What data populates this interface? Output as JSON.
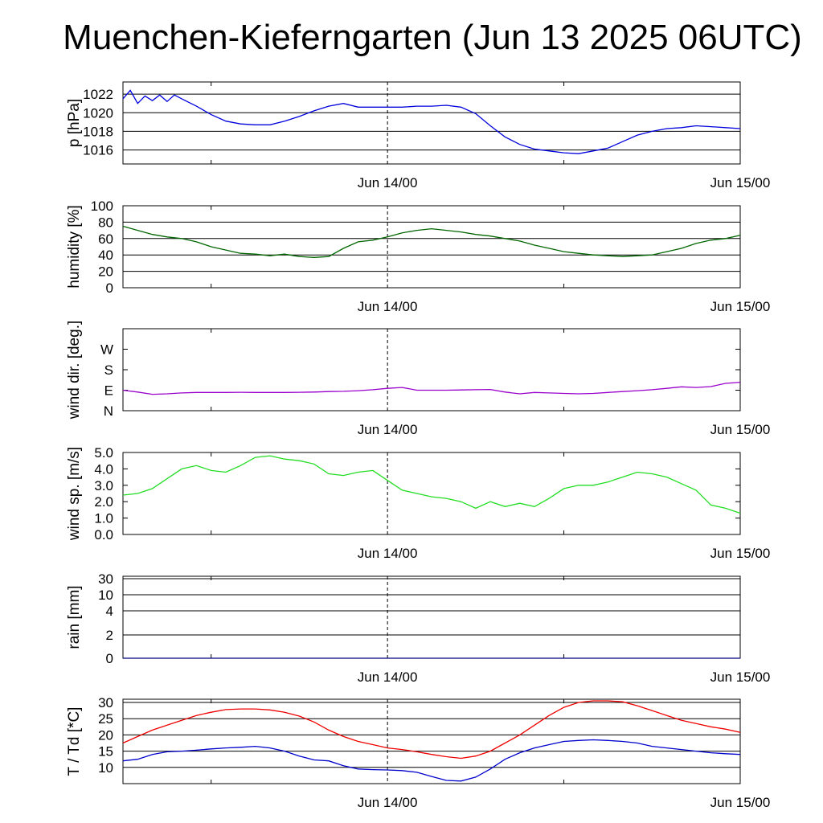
{
  "title": "Muenchen-Kieferngarten (Jun 13 2025 06UTC)",
  "chart_data": [
    {
      "type": "line",
      "ylabel": "p [hPa]",
      "ylim": [
        1014.5,
        1023.3
      ],
      "yticks": [
        1016,
        1018,
        1020,
        1022
      ],
      "yticklabels": [
        "1016",
        "1018",
        "1020",
        "1022"
      ],
      "grid": true,
      "xticklabels": [
        "Jun 14/00",
        "Jun 15/00"
      ],
      "series": [
        {
          "color": "#0000dd",
          "x": [
            0,
            0.5,
            1,
            1.5,
            2,
            2.5,
            3,
            3.5,
            4,
            5,
            6,
            7,
            8,
            9,
            10,
            11,
            12,
            13,
            14,
            15,
            16,
            17,
            18,
            19,
            20,
            21,
            22,
            23,
            24,
            25,
            26,
            27,
            28,
            29,
            30,
            31,
            32,
            33,
            34,
            35,
            36,
            37,
            38,
            39,
            40,
            41,
            42
          ],
          "y": [
            1021.5,
            1022.4,
            1021.0,
            1021.8,
            1021.3,
            1021.9,
            1021.2,
            1021.9,
            1021.5,
            1020.7,
            1019.8,
            1019.1,
            1018.8,
            1018.7,
            1018.7,
            1019.1,
            1019.6,
            1020.2,
            1020.7,
            1021.0,
            1020.6,
            1020.6,
            1020.6,
            1020.6,
            1020.7,
            1020.7,
            1020.8,
            1020.6,
            1019.9,
            1018.6,
            1017.4,
            1016.6,
            1016.1,
            1015.9,
            1015.7,
            1015.6,
            1015.9,
            1016.2,
            1016.9,
            1017.6,
            1018.0,
            1018.3,
            1018.4,
            1018.6,
            1018.5,
            1018.4,
            1018.3
          ]
        }
      ]
    },
    {
      "type": "line",
      "ylabel": "humidity [%]",
      "ylim": [
        0,
        100
      ],
      "yticks": [
        0,
        20,
        40,
        60,
        80,
        100
      ],
      "yticklabels": [
        "0",
        "20",
        "40",
        "60",
        "80",
        "100"
      ],
      "grid": true,
      "xticklabels": [
        "Jun 14/00",
        "Jun 15/00"
      ],
      "series": [
        {
          "color": "#006600",
          "x": [
            0,
            1,
            2,
            3,
            4,
            5,
            6,
            7,
            8,
            9,
            10,
            11,
            12,
            13,
            14,
            15,
            16,
            17,
            18,
            19,
            20,
            21,
            22,
            23,
            24,
            25,
            26,
            27,
            28,
            29,
            30,
            31,
            32,
            33,
            34,
            35,
            36,
            37,
            38,
            39,
            40,
            41,
            42
          ],
          "y": [
            75,
            70,
            65,
            62,
            60,
            56,
            50,
            46,
            42,
            41,
            39,
            41,
            38,
            37,
            38,
            48,
            56,
            58,
            62,
            67,
            70,
            72,
            70,
            68,
            65,
            63,
            60,
            57,
            52,
            48,
            44,
            42,
            40,
            39,
            38,
            39,
            40,
            44,
            48,
            54,
            58,
            60,
            64
          ]
        }
      ]
    },
    {
      "type": "line",
      "ylabel": "wind dir. [deg.]",
      "ylim": [
        0,
        360
      ],
      "yticks": [
        0,
        90,
        180,
        270
      ],
      "yticklabels": [
        "N",
        "E",
        "S",
        "W"
      ],
      "grid": false,
      "xticklabels": [
        "Jun 14/00",
        "Jun 15/00"
      ],
      "series": [
        {
          "color": "#9900cc",
          "x": [
            0,
            1,
            2,
            3,
            4,
            5,
            6,
            7,
            8,
            9,
            10,
            11,
            12,
            13,
            14,
            15,
            16,
            17,
            18,
            19,
            20,
            21,
            22,
            23,
            24,
            25,
            26,
            27,
            28,
            29,
            30,
            31,
            32,
            33,
            34,
            35,
            36,
            37,
            38,
            39,
            40,
            41,
            42
          ],
          "y": [
            90,
            82,
            72,
            74,
            78,
            80,
            80,
            80,
            81,
            80,
            80,
            80,
            81,
            82,
            84,
            85,
            88,
            92,
            98,
            102,
            90,
            90,
            90,
            91,
            92,
            93,
            82,
            74,
            80,
            78,
            76,
            74,
            76,
            80,
            84,
            88,
            92,
            98,
            105,
            102,
            106,
            120,
            125
          ]
        }
      ]
    },
    {
      "type": "line",
      "ylabel": "wind sp. [m/s]",
      "ylim": [
        0,
        5.0
      ],
      "yticks": [
        0,
        1,
        2,
        3,
        4,
        5
      ],
      "yticklabels": [
        "0.0",
        "1.0",
        "2.0",
        "3.0",
        "4.0",
        "5.0"
      ],
      "grid": false,
      "xticklabels": [
        "Jun 14/00",
        "Jun 15/00"
      ],
      "series": [
        {
          "color": "#22dd22",
          "x": [
            0,
            1,
            2,
            3,
            4,
            5,
            6,
            7,
            8,
            9,
            10,
            11,
            12,
            13,
            14,
            15,
            16,
            17,
            18,
            19,
            20,
            21,
            22,
            23,
            24,
            25,
            26,
            27,
            28,
            29,
            30,
            31,
            32,
            33,
            34,
            35,
            36,
            37,
            38,
            39,
            40,
            41,
            42
          ],
          "y": [
            2.4,
            2.5,
            2.8,
            3.4,
            4.0,
            4.2,
            3.9,
            3.8,
            4.2,
            4.7,
            4.8,
            4.6,
            4.5,
            4.3,
            3.7,
            3.6,
            3.8,
            3.9,
            3.3,
            2.7,
            2.5,
            2.3,
            2.2,
            2.0,
            1.6,
            2.0,
            1.7,
            1.9,
            1.7,
            2.2,
            2.8,
            3.0,
            3.0,
            3.2,
            3.5,
            3.8,
            3.7,
            3.5,
            3.1,
            2.7,
            1.8,
            1.6,
            1.3
          ]
        }
      ]
    },
    {
      "type": "line",
      "ylabel": "rain [mm]",
      "ylim": [
        0,
        30
      ],
      "yticks": [
        0,
        2,
        4,
        10,
        30
      ],
      "yticklabels": [
        "0",
        "2",
        "4",
        "10",
        "30"
      ],
      "grid": true,
      "xticklabels": [
        "Jun 14/00",
        "Jun 15/00"
      ],
      "series": [
        {
          "color": "#000080",
          "x": [
            0,
            42
          ],
          "y": [
            0,
            0
          ]
        }
      ]
    },
    {
      "type": "line",
      "ylabel": "T / Td [*C]",
      "ylim": [
        5,
        31
      ],
      "yticks": [
        10,
        15,
        20,
        25,
        30
      ],
      "yticklabels": [
        "10",
        "15",
        "20",
        "25",
        "30"
      ],
      "grid": true,
      "xticklabels": [
        "Jun 14/00",
        "Jun 15/00"
      ],
      "series": [
        {
          "color": "#ee0000",
          "x": [
            0,
            1,
            2,
            3,
            4,
            5,
            6,
            7,
            8,
            9,
            10,
            11,
            12,
            13,
            14,
            15,
            16,
            17,
            18,
            19,
            20,
            21,
            22,
            23,
            24,
            25,
            26,
            27,
            28,
            29,
            30,
            31,
            32,
            33,
            34,
            35,
            36,
            37,
            38,
            39,
            40,
            41,
            42
          ],
          "y": [
            17.5,
            19.5,
            21.5,
            23,
            24.5,
            26,
            27,
            27.8,
            28,
            28,
            27.7,
            27,
            25.8,
            24,
            21.5,
            19.5,
            18,
            17,
            16,
            15.5,
            14.8,
            14,
            13.3,
            12.8,
            13.5,
            15,
            17.5,
            20,
            23,
            26,
            28.5,
            30,
            30.5,
            30.5,
            30.2,
            29,
            27.5,
            26,
            24.5,
            23.5,
            22.5,
            21.8,
            20.8
          ]
        },
        {
          "color": "#0000cc",
          "x": [
            0,
            1,
            2,
            3,
            4,
            5,
            6,
            7,
            8,
            9,
            10,
            11,
            12,
            13,
            14,
            15,
            16,
            17,
            18,
            19,
            20,
            21,
            22,
            23,
            24,
            25,
            26,
            27,
            28,
            29,
            30,
            31,
            32,
            33,
            34,
            35,
            36,
            37,
            38,
            39,
            40,
            41,
            42
          ],
          "y": [
            12,
            12.5,
            14,
            14.8,
            15,
            15.3,
            15.7,
            16,
            16.2,
            16.5,
            16,
            15,
            13.5,
            12.3,
            12,
            10.5,
            9.5,
            9.3,
            9.2,
            9,
            8.5,
            7.2,
            6,
            5.8,
            7,
            9.5,
            12.5,
            14.5,
            16,
            17,
            18,
            18.3,
            18.5,
            18.3,
            18,
            17.5,
            16.5,
            16,
            15.5,
            15,
            14.5,
            14.2,
            14
          ]
        }
      ]
    }
  ]
}
